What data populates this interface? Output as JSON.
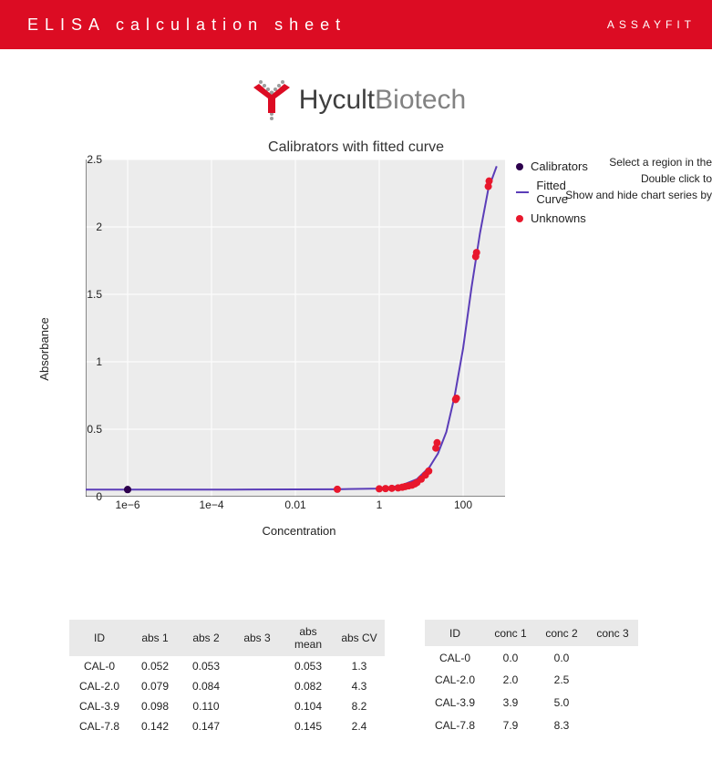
{
  "header": {
    "title": "ELISA calculation sheet",
    "brand": "ASSAYFIT",
    "bg_color": "#dc0c23",
    "text_color": "#ffffff"
  },
  "logo": {
    "part1": "Hycult",
    "part2": "Biotech",
    "part1_color": "#3f3f3f",
    "part2_color": "#828282",
    "icon_accent": "#dc0c23",
    "icon_gray": "#9c9c9c"
  },
  "hints": {
    "l1": "Select a region in the",
    "l2": "Double click to",
    "l3": "Show and hide chart series by"
  },
  "chart": {
    "type": "scatter+line",
    "title": "Calibrators with fitted curve",
    "xlabel": "Concentration",
    "ylabel": "Absorbance",
    "background_color": "#ececec",
    "grid_color": "#ffffff",
    "axis_color": "#222222",
    "x_scale": "log",
    "x_ticks_log10": [
      -6,
      -4,
      -2,
      0,
      2
    ],
    "x_tick_labels": [
      "1e−6",
      "1e−4",
      "0.01",
      "1",
      "100"
    ],
    "x_domain_log10": [
      -7,
      3
    ],
    "ylim": [
      0,
      2.5
    ],
    "y_ticks": [
      0,
      0.5,
      1,
      1.5,
      2,
      2.5
    ],
    "legend": {
      "items": [
        {
          "type": "circle",
          "color": "#2d004d",
          "label": "Calibrators"
        },
        {
          "type": "line",
          "color": "#5b3db8",
          "label": "Fitted Curve"
        },
        {
          "type": "circle",
          "color": "#e8172c",
          "label": "Unknowns"
        }
      ]
    },
    "fitted_curve": {
      "color": "#5b3db8",
      "width": 2,
      "points_log10x_y": [
        [
          -7,
          0.052
        ],
        [
          -5,
          0.052
        ],
        [
          -3,
          0.053
        ],
        [
          -1,
          0.055
        ],
        [
          0,
          0.06
        ],
        [
          0.5,
          0.08
        ],
        [
          0.9,
          0.13
        ],
        [
          1.2,
          0.22
        ],
        [
          1.4,
          0.32
        ],
        [
          1.6,
          0.48
        ],
        [
          1.8,
          0.75
        ],
        [
          2.0,
          1.1
        ],
        [
          2.2,
          1.55
        ],
        [
          2.4,
          1.95
        ],
        [
          2.6,
          2.28
        ],
        [
          2.8,
          2.45
        ]
      ]
    },
    "calibrators": {
      "color": "#2d004d",
      "radius": 4,
      "points_log10x_y": [
        [
          -6,
          0.052
        ],
        [
          -6,
          0.053
        ]
      ]
    },
    "unknowns": {
      "color": "#e8172c",
      "radius": 4,
      "points_log10x_y": [
        [
          -1.0,
          0.055
        ],
        [
          0.0,
          0.058
        ],
        [
          0.15,
          0.06
        ],
        [
          0.3,
          0.062
        ],
        [
          0.45,
          0.065
        ],
        [
          0.55,
          0.07
        ],
        [
          0.62,
          0.075
        ],
        [
          0.7,
          0.08
        ],
        [
          0.78,
          0.085
        ],
        [
          0.85,
          0.095
        ],
        [
          0.9,
          0.105
        ],
        [
          1.0,
          0.13
        ],
        [
          1.1,
          0.16
        ],
        [
          1.18,
          0.19
        ],
        [
          1.35,
          0.36
        ],
        [
          1.38,
          0.4
        ],
        [
          1.82,
          0.72
        ],
        [
          1.84,
          0.73
        ],
        [
          2.3,
          1.78
        ],
        [
          2.32,
          1.81
        ],
        [
          2.6,
          2.3
        ],
        [
          2.62,
          2.34
        ]
      ]
    }
  },
  "table_abs": {
    "columns": [
      "ID",
      "abs 1",
      "abs 2",
      "abs 3",
      "abs mean",
      "abs CV"
    ],
    "rows": [
      [
        "CAL-0",
        "0.052",
        "0.053",
        "",
        "0.053",
        "1.3"
      ],
      [
        "CAL-2.0",
        "0.079",
        "0.084",
        "",
        "0.082",
        "4.3"
      ],
      [
        "CAL-3.9",
        "0.098",
        "0.110",
        "",
        "0.104",
        "8.2"
      ],
      [
        "CAL-7.8",
        "0.142",
        "0.147",
        "",
        "0.145",
        "2.4"
      ]
    ]
  },
  "table_conc": {
    "columns": [
      "ID",
      "conc 1",
      "conc 2",
      "conc 3"
    ],
    "rows": [
      [
        "CAL-0",
        "0.0",
        "0.0",
        ""
      ],
      [
        "CAL-2.0",
        "2.0",
        "2.5",
        ""
      ],
      [
        "CAL-3.9",
        "3.9",
        "5.0",
        ""
      ],
      [
        "CAL-7.8",
        "7.9",
        "8.3",
        ""
      ]
    ]
  }
}
